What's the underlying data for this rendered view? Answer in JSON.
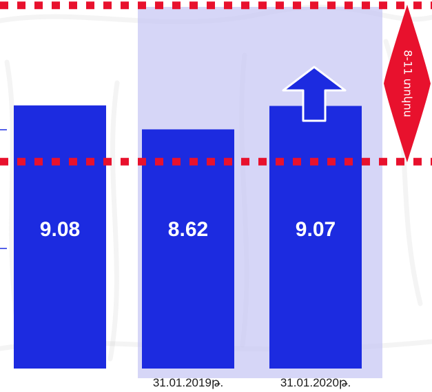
{
  "chart_data": {
    "type": "bar",
    "categories": [
      "",
      "31.01.2019թ.",
      "31.01.2020թ."
    ],
    "values": [
      9.08,
      8.62,
      9.07
    ],
    "value_labels": [
      "9.08",
      "8.62",
      "9.07"
    ],
    "highlighted_categories": [
      1,
      2
    ],
    "reference_lines": [
      {
        "value": 11,
        "style": "dotted",
        "color": "#e8112d"
      },
      {
        "value": 8,
        "style": "dotted",
        "color": "#e8112d"
      }
    ],
    "band_annotation": {
      "text": "8-11 տոկոս",
      "from": 8,
      "to": 11
    },
    "trend_arrow": "up",
    "colors": {
      "bar": "#1c2be0",
      "highlight": "#c4c4f4",
      "reference": "#e8112d",
      "label": "#ffffff"
    },
    "grid": false
  }
}
